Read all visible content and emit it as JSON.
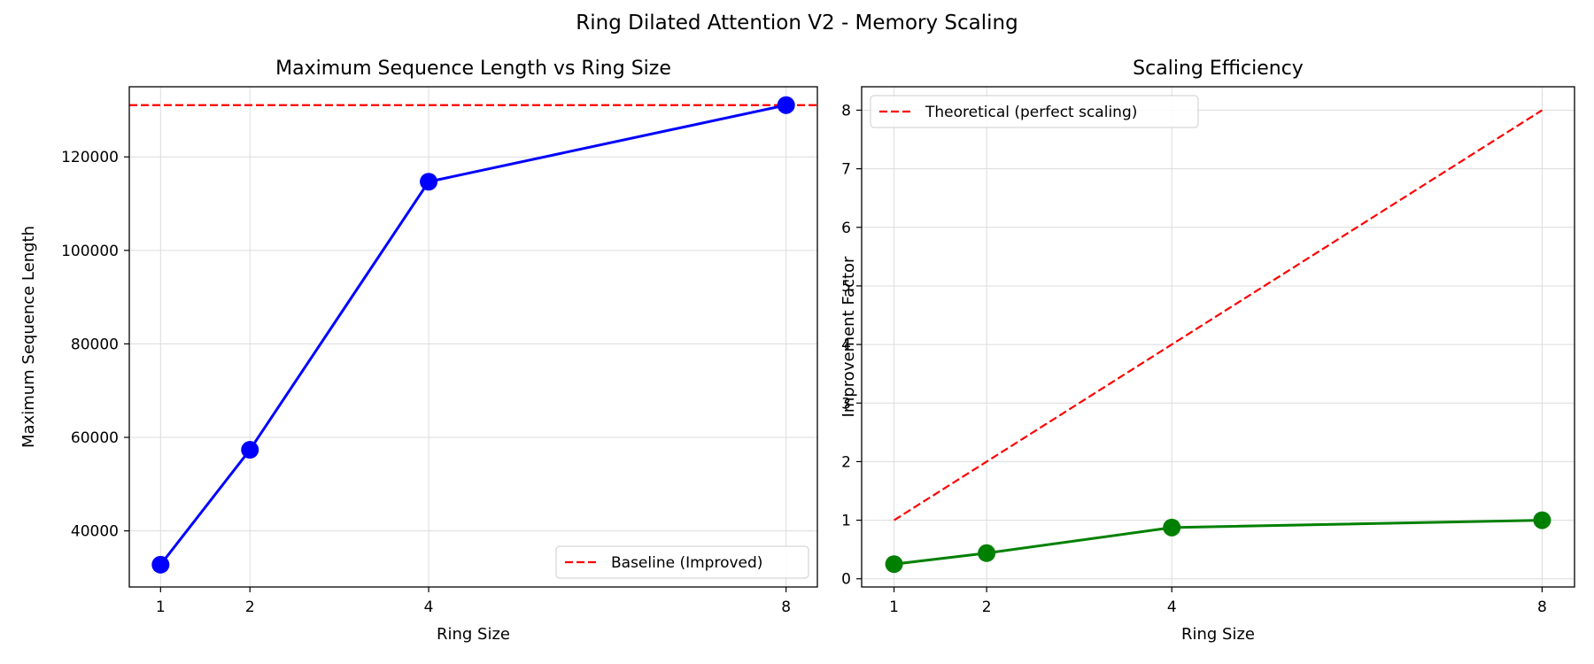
{
  "figure": {
    "suptitle": "Ring Dilated Attention V2 - Memory Scaling"
  },
  "chart_data": [
    {
      "type": "line",
      "title": "Maximum Sequence Length vs Ring Size",
      "xlabel": "Ring Size",
      "ylabel": "Maximum Sequence Length",
      "x": [
        1,
        2,
        4,
        8
      ],
      "xticks": [
        1,
        2,
        4,
        8
      ],
      "yticks": [
        40000,
        60000,
        80000,
        100000,
        120000
      ],
      "xlim": [
        0.65,
        8.35
      ],
      "ylim": [
        28000,
        135000
      ],
      "grid": true,
      "legend_position": "lower-right",
      "series": [
        {
          "values": [
            32768,
            57344,
            114688,
            131072
          ],
          "color": "#0000ff",
          "style": "solid",
          "marker": "circle"
        }
      ],
      "reference_lines": [
        {
          "name": "Baseline (Improved)",
          "orientation": "horizontal",
          "y": 131072,
          "color": "#ff0000",
          "style": "dashed"
        }
      ]
    },
    {
      "type": "line",
      "title": "Scaling Efficiency",
      "xlabel": "Ring Size",
      "ylabel": "Improvement Factor",
      "x": [
        1,
        2,
        4,
        8
      ],
      "xticks": [
        1,
        2,
        4,
        8
      ],
      "yticks": [
        0,
        1,
        2,
        3,
        4,
        5,
        6,
        7,
        8
      ],
      "xlim": [
        0.65,
        8.35
      ],
      "ylim": [
        -0.14,
        8.4
      ],
      "grid": true,
      "legend_position": "upper-left",
      "series": [
        {
          "name": "Theoretical (perfect scaling)",
          "values": [
            1,
            2,
            4,
            8
          ],
          "color": "#ff0000",
          "style": "dashed",
          "marker": "none"
        },
        {
          "values": [
            0.25,
            0.4375,
            0.875,
            1.0
          ],
          "color": "#008000",
          "style": "solid",
          "marker": "circle"
        }
      ]
    }
  ]
}
